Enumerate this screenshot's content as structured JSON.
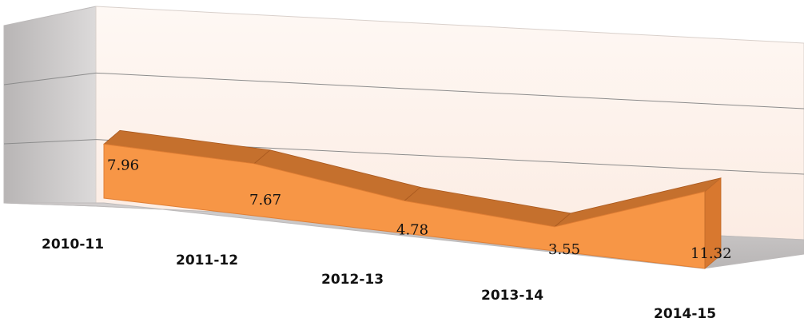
{
  "chart_data": {
    "type": "area",
    "categories": [
      "2010-11",
      "2011-12",
      "2012-13",
      "2013-14",
      "2014-15"
    ],
    "values": [
      7.96,
      7.67,
      4.78,
      3.55,
      11.32
    ],
    "ylim": [
      0,
      15
    ],
    "grid": true,
    "colors": {
      "area_front": "#F79646",
      "area_top": "#C5702D",
      "back_wall": "#FDF3EE",
      "side_wall": "#CDCACA",
      "floor": "#C6C3C3",
      "grid": "#8C8C8C"
    }
  }
}
